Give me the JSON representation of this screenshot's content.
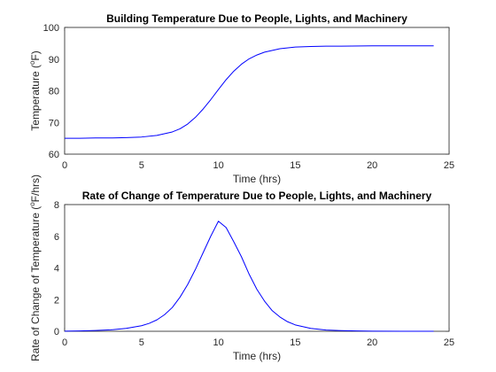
{
  "colors": {
    "line": "#0000ff",
    "axes": "#262626",
    "grid": "#dcdcdc"
  },
  "chart_data": [
    {
      "type": "line",
      "title": "Building Temperature Due to People, Lights, and Machinery",
      "xlabel": "Time (hrs)",
      "ylabel": {
        "pre": "Temperature (",
        "sup": "o",
        "post": "F)"
      },
      "xlim": [
        0,
        25
      ],
      "ylim": [
        60,
        100
      ],
      "xticks": [
        0,
        5,
        10,
        15,
        20,
        25
      ],
      "yticks": [
        60,
        70,
        80,
        90,
        100
      ],
      "grid": true,
      "series": [
        {
          "x": [
            0,
            1,
            2,
            3,
            4,
            5,
            6,
            7,
            7.5,
            8,
            8.5,
            9,
            9.5,
            10,
            10.5,
            11,
            11.5,
            12,
            12.5,
            13,
            14,
            15,
            16,
            17,
            18,
            20,
            22,
            24
          ],
          "y": [
            65.0,
            65.0,
            65.1,
            65.1,
            65.2,
            65.4,
            65.9,
            67.0,
            68.0,
            69.5,
            71.6,
            74.2,
            77.2,
            80.4,
            83.5,
            86.2,
            88.4,
            90.1,
            91.3,
            92.2,
            93.3,
            93.8,
            94.0,
            94.1,
            94.1,
            94.2,
            94.2,
            94.2
          ]
        }
      ]
    },
    {
      "type": "line",
      "title": "Rate of Change of Temperature Due to People, Lights, and Machinery",
      "xlabel": "Time (hrs)",
      "ylabel": {
        "pre": "Rate of Change of Temperature (",
        "sup": "o",
        "post": "F/hrs)"
      },
      "xlim": [
        0,
        25
      ],
      "ylim": [
        0,
        8
      ],
      "xticks": [
        0,
        5,
        10,
        15,
        20,
        25
      ],
      "yticks": [
        0,
        2,
        4,
        6,
        8
      ],
      "grid": true,
      "series": [
        {
          "x": [
            0,
            1,
            2,
            3,
            4,
            5,
            5.5,
            6,
            6.5,
            7,
            7.5,
            8,
            8.5,
            9,
            9.5,
            10,
            10.5,
            11,
            11.5,
            12,
            12.5,
            13,
            13.5,
            14,
            14.5,
            15,
            16,
            17,
            18,
            19,
            20,
            22,
            24
          ],
          "y": [
            0.01,
            0.02,
            0.05,
            0.09,
            0.18,
            0.35,
            0.5,
            0.72,
            1.05,
            1.5,
            2.15,
            2.95,
            3.9,
            4.95,
            6.0,
            6.95,
            6.55,
            5.65,
            4.7,
            3.6,
            2.65,
            1.9,
            1.3,
            0.9,
            0.6,
            0.4,
            0.18,
            0.08,
            0.04,
            0.02,
            0.01,
            0.0,
            0.0
          ]
        }
      ]
    }
  ]
}
